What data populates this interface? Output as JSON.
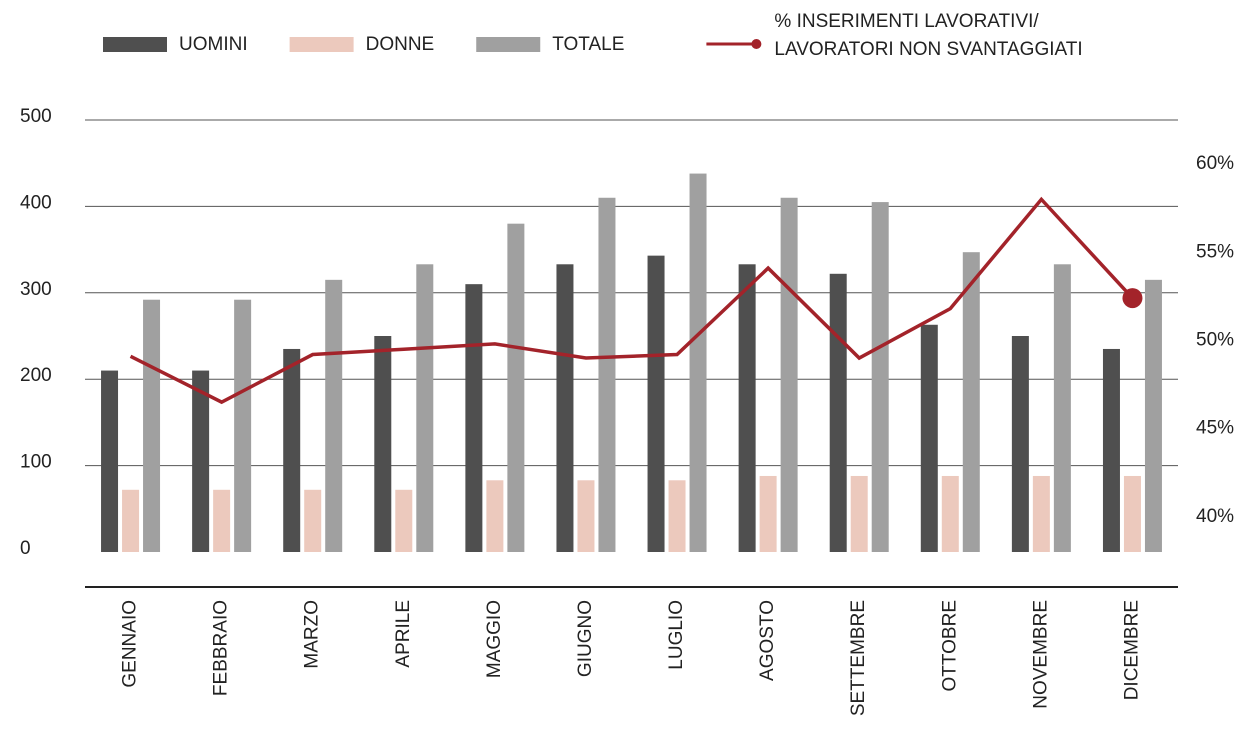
{
  "chart_data": {
    "type": "bar",
    "categories": [
      "GENNAIO",
      "FEBBRAIO",
      "MARZO",
      "APRILE",
      "MAGGIO",
      "GIUGNO",
      "LUGLIO",
      "AGOSTO",
      "SETTEMBRE",
      "OTTOBRE",
      "NOVEMBRE",
      "DICEMBRE"
    ],
    "series": [
      {
        "name": "UOMINI",
        "color": "#4f4f4f",
        "values": [
          210,
          210,
          235,
          250,
          310,
          333,
          343,
          333,
          322,
          263,
          250,
          235
        ]
      },
      {
        "name": "DONNE",
        "color": "#ecc9bd",
        "values": [
          72,
          72,
          72,
          72,
          83,
          83,
          83,
          88,
          88,
          88,
          88,
          88
        ]
      },
      {
        "name": "TOTALE",
        "color": "#a0a0a0",
        "values": [
          292,
          292,
          315,
          333,
          380,
          410,
          438,
          410,
          405,
          347,
          333,
          315
        ]
      },
      {
        "name": "% INSERIMENTI LAVORATIVI/ LAVORATORI NON SVANTAGGIATI",
        "color": "#a3232a",
        "type": "line",
        "axis": "y2",
        "values": [
          49.1,
          46.5,
          49.2,
          49.5,
          49.8,
          49.0,
          49.2,
          54.1,
          49.0,
          51.8,
          58.0,
          52.4
        ]
      }
    ],
    "ylim": [
      0,
      500
    ],
    "yticks": [
      0,
      100,
      200,
      300,
      400,
      500
    ],
    "y2lim": [
      38,
      62.5
    ],
    "y2ticks": [
      {
        "value": 40,
        "label": "40%"
      },
      {
        "value": 45,
        "label": "45%"
      },
      {
        "value": 50,
        "label": "50%"
      },
      {
        "value": 55,
        "label": "55%"
      },
      {
        "value": 60,
        "label": "60%"
      }
    ],
    "grid": true
  }
}
